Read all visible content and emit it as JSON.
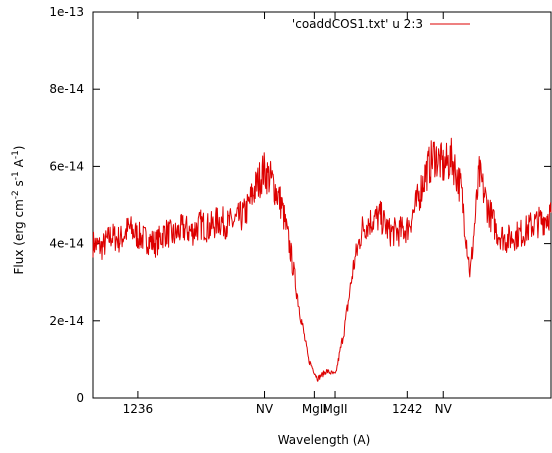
{
  "chart_data": {
    "type": "line",
    "legend": {
      "label": "'coaddCOS1.txt' u 2:3",
      "placement": "top-right"
    },
    "xlabel": "Wavelength (A)",
    "ylabel": "Flux (erg cm",
    "ylabel_sup1": "-2",
    "ylabel_mid": " s",
    "ylabel_sup2": "-1",
    "ylabel_mid2": " A",
    "ylabel_sup3": "-1",
    "ylabel_end": ")",
    "xlim": [
      1235.0,
      1245.2
    ],
    "ylim": [
      0,
      1e-13
    ],
    "yticks": [
      {
        "value": 0,
        "label": "0"
      },
      {
        "value": 2e-14,
        "label": "2e-14"
      },
      {
        "value": 4e-14,
        "label": "4e-14"
      },
      {
        "value": 6e-14,
        "label": "6e-14"
      },
      {
        "value": 8e-14,
        "label": "8e-14"
      },
      {
        "value": 1e-13,
        "label": "1e-13"
      }
    ],
    "xticks": [
      {
        "value": 1236.0,
        "label": "1236"
      },
      {
        "value": 1238.82,
        "label": "NV"
      },
      {
        "value": 1239.93,
        "label": "MgII"
      },
      {
        "value": 1240.39,
        "label": "MgII"
      },
      {
        "value": 1242.0,
        "label": "1242"
      },
      {
        "value": 1242.8,
        "label": "NV"
      }
    ],
    "grid": false,
    "line_color": "#dd0000",
    "series": [
      {
        "name": "'coaddCOS1.txt' u 2:3",
        "x": [
          1235.0,
          1235.2,
          1235.4,
          1235.6,
          1235.8,
          1236.0,
          1236.2,
          1236.4,
          1236.6,
          1236.8,
          1237.0,
          1237.2,
          1237.4,
          1237.6,
          1237.8,
          1238.0,
          1238.2,
          1238.4,
          1238.6,
          1238.8,
          1239.0,
          1239.2,
          1239.4,
          1239.6,
          1239.8,
          1240.0,
          1240.2,
          1240.4,
          1240.6,
          1240.8,
          1241.0,
          1241.2,
          1241.4,
          1241.6,
          1241.8,
          1242.0,
          1242.2,
          1242.4,
          1242.6,
          1242.8,
          1243.0,
          1243.2,
          1243.4,
          1243.6,
          1243.8,
          1244.0,
          1244.2,
          1244.4,
          1244.6,
          1244.8,
          1245.0,
          1245.2
        ],
        "y": [
          4e-14,
          3.9e-14,
          4.2e-14,
          4.1e-14,
          4.4e-14,
          4.2e-14,
          4.1e-14,
          4e-14,
          4.3e-14,
          4.2e-14,
          4.4e-14,
          4.3e-14,
          4.5e-14,
          4.4e-14,
          4.6e-14,
          4.5e-14,
          4.6e-14,
          4.8e-14,
          5.4e-14,
          5.9e-14,
          5.6e-14,
          5e-14,
          3.8e-14,
          2.3e-14,
          1e-14,
          5e-15,
          7e-15,
          6e-15,
          1.8e-14,
          3.4e-14,
          4.4e-14,
          4.6e-14,
          4.7e-14,
          4.3e-14,
          4.3e-14,
          4.4e-14,
          5e-14,
          5.8e-14,
          6.3e-14,
          6e-14,
          6.2e-14,
          5.4e-14,
          3.2e-14,
          5.8e-14,
          4.9e-14,
          4.3e-14,
          4.1e-14,
          4.2e-14,
          4.3e-14,
          4.5e-14,
          4.6e-14,
          4.8e-14
        ]
      }
    ]
  }
}
